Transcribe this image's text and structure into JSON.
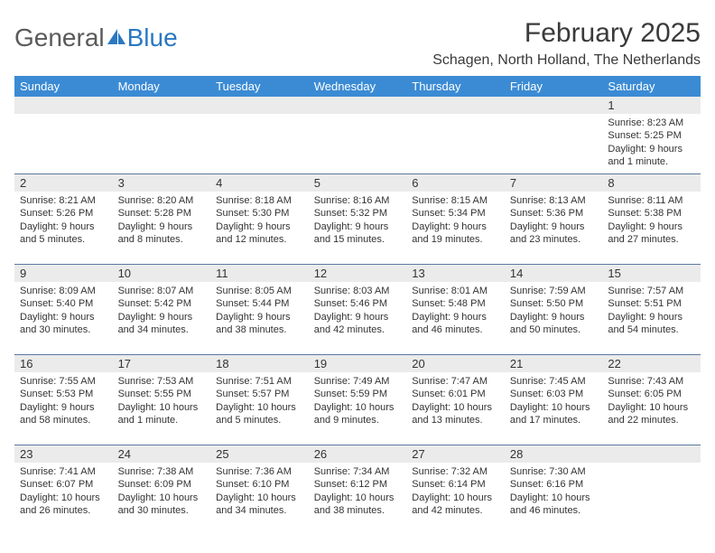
{
  "logo": {
    "text1": "General",
    "text2": "Blue"
  },
  "title": "February 2025",
  "location": "Schagen, North Holland, The Netherlands",
  "colors": {
    "header_bg": "#3b8bd4",
    "header_fg": "#ffffff",
    "daynum_bg": "#ebebeb",
    "rule": "#5a7aa0",
    "text": "#333333",
    "logo_gray": "#5a5a5a",
    "logo_blue": "#2b78c2",
    "background": "#ffffff"
  },
  "fonts": {
    "title_size": 30,
    "location_size": 16,
    "dayhead_size": 13,
    "daynum_size": 13,
    "body_size": 11
  },
  "day_names": [
    "Sunday",
    "Monday",
    "Tuesday",
    "Wednesday",
    "Thursday",
    "Friday",
    "Saturday"
  ],
  "weeks": [
    [
      null,
      null,
      null,
      null,
      null,
      null,
      {
        "n": "1",
        "sr": "Sunrise: 8:23 AM",
        "ss": "Sunset: 5:25 PM",
        "d1": "Daylight: 9 hours",
        "d2": "and 1 minute."
      }
    ],
    [
      {
        "n": "2",
        "sr": "Sunrise: 8:21 AM",
        "ss": "Sunset: 5:26 PM",
        "d1": "Daylight: 9 hours",
        "d2": "and 5 minutes."
      },
      {
        "n": "3",
        "sr": "Sunrise: 8:20 AM",
        "ss": "Sunset: 5:28 PM",
        "d1": "Daylight: 9 hours",
        "d2": "and 8 minutes."
      },
      {
        "n": "4",
        "sr": "Sunrise: 8:18 AM",
        "ss": "Sunset: 5:30 PM",
        "d1": "Daylight: 9 hours",
        "d2": "and 12 minutes."
      },
      {
        "n": "5",
        "sr": "Sunrise: 8:16 AM",
        "ss": "Sunset: 5:32 PM",
        "d1": "Daylight: 9 hours",
        "d2": "and 15 minutes."
      },
      {
        "n": "6",
        "sr": "Sunrise: 8:15 AM",
        "ss": "Sunset: 5:34 PM",
        "d1": "Daylight: 9 hours",
        "d2": "and 19 minutes."
      },
      {
        "n": "7",
        "sr": "Sunrise: 8:13 AM",
        "ss": "Sunset: 5:36 PM",
        "d1": "Daylight: 9 hours",
        "d2": "and 23 minutes."
      },
      {
        "n": "8",
        "sr": "Sunrise: 8:11 AM",
        "ss": "Sunset: 5:38 PM",
        "d1": "Daylight: 9 hours",
        "d2": "and 27 minutes."
      }
    ],
    [
      {
        "n": "9",
        "sr": "Sunrise: 8:09 AM",
        "ss": "Sunset: 5:40 PM",
        "d1": "Daylight: 9 hours",
        "d2": "and 30 minutes."
      },
      {
        "n": "10",
        "sr": "Sunrise: 8:07 AM",
        "ss": "Sunset: 5:42 PM",
        "d1": "Daylight: 9 hours",
        "d2": "and 34 minutes."
      },
      {
        "n": "11",
        "sr": "Sunrise: 8:05 AM",
        "ss": "Sunset: 5:44 PM",
        "d1": "Daylight: 9 hours",
        "d2": "and 38 minutes."
      },
      {
        "n": "12",
        "sr": "Sunrise: 8:03 AM",
        "ss": "Sunset: 5:46 PM",
        "d1": "Daylight: 9 hours",
        "d2": "and 42 minutes."
      },
      {
        "n": "13",
        "sr": "Sunrise: 8:01 AM",
        "ss": "Sunset: 5:48 PM",
        "d1": "Daylight: 9 hours",
        "d2": "and 46 minutes."
      },
      {
        "n": "14",
        "sr": "Sunrise: 7:59 AM",
        "ss": "Sunset: 5:50 PM",
        "d1": "Daylight: 9 hours",
        "d2": "and 50 minutes."
      },
      {
        "n": "15",
        "sr": "Sunrise: 7:57 AM",
        "ss": "Sunset: 5:51 PM",
        "d1": "Daylight: 9 hours",
        "d2": "and 54 minutes."
      }
    ],
    [
      {
        "n": "16",
        "sr": "Sunrise: 7:55 AM",
        "ss": "Sunset: 5:53 PM",
        "d1": "Daylight: 9 hours",
        "d2": "and 58 minutes."
      },
      {
        "n": "17",
        "sr": "Sunrise: 7:53 AM",
        "ss": "Sunset: 5:55 PM",
        "d1": "Daylight: 10 hours",
        "d2": "and 1 minute."
      },
      {
        "n": "18",
        "sr": "Sunrise: 7:51 AM",
        "ss": "Sunset: 5:57 PM",
        "d1": "Daylight: 10 hours",
        "d2": "and 5 minutes."
      },
      {
        "n": "19",
        "sr": "Sunrise: 7:49 AM",
        "ss": "Sunset: 5:59 PM",
        "d1": "Daylight: 10 hours",
        "d2": "and 9 minutes."
      },
      {
        "n": "20",
        "sr": "Sunrise: 7:47 AM",
        "ss": "Sunset: 6:01 PM",
        "d1": "Daylight: 10 hours",
        "d2": "and 13 minutes."
      },
      {
        "n": "21",
        "sr": "Sunrise: 7:45 AM",
        "ss": "Sunset: 6:03 PM",
        "d1": "Daylight: 10 hours",
        "d2": "and 17 minutes."
      },
      {
        "n": "22",
        "sr": "Sunrise: 7:43 AM",
        "ss": "Sunset: 6:05 PM",
        "d1": "Daylight: 10 hours",
        "d2": "and 22 minutes."
      }
    ],
    [
      {
        "n": "23",
        "sr": "Sunrise: 7:41 AM",
        "ss": "Sunset: 6:07 PM",
        "d1": "Daylight: 10 hours",
        "d2": "and 26 minutes."
      },
      {
        "n": "24",
        "sr": "Sunrise: 7:38 AM",
        "ss": "Sunset: 6:09 PM",
        "d1": "Daylight: 10 hours",
        "d2": "and 30 minutes."
      },
      {
        "n": "25",
        "sr": "Sunrise: 7:36 AM",
        "ss": "Sunset: 6:10 PM",
        "d1": "Daylight: 10 hours",
        "d2": "and 34 minutes."
      },
      {
        "n": "26",
        "sr": "Sunrise: 7:34 AM",
        "ss": "Sunset: 6:12 PM",
        "d1": "Daylight: 10 hours",
        "d2": "and 38 minutes."
      },
      {
        "n": "27",
        "sr": "Sunrise: 7:32 AM",
        "ss": "Sunset: 6:14 PM",
        "d1": "Daylight: 10 hours",
        "d2": "and 42 minutes."
      },
      {
        "n": "28",
        "sr": "Sunrise: 7:30 AM",
        "ss": "Sunset: 6:16 PM",
        "d1": "Daylight: 10 hours",
        "d2": "and 46 minutes."
      },
      null
    ]
  ]
}
